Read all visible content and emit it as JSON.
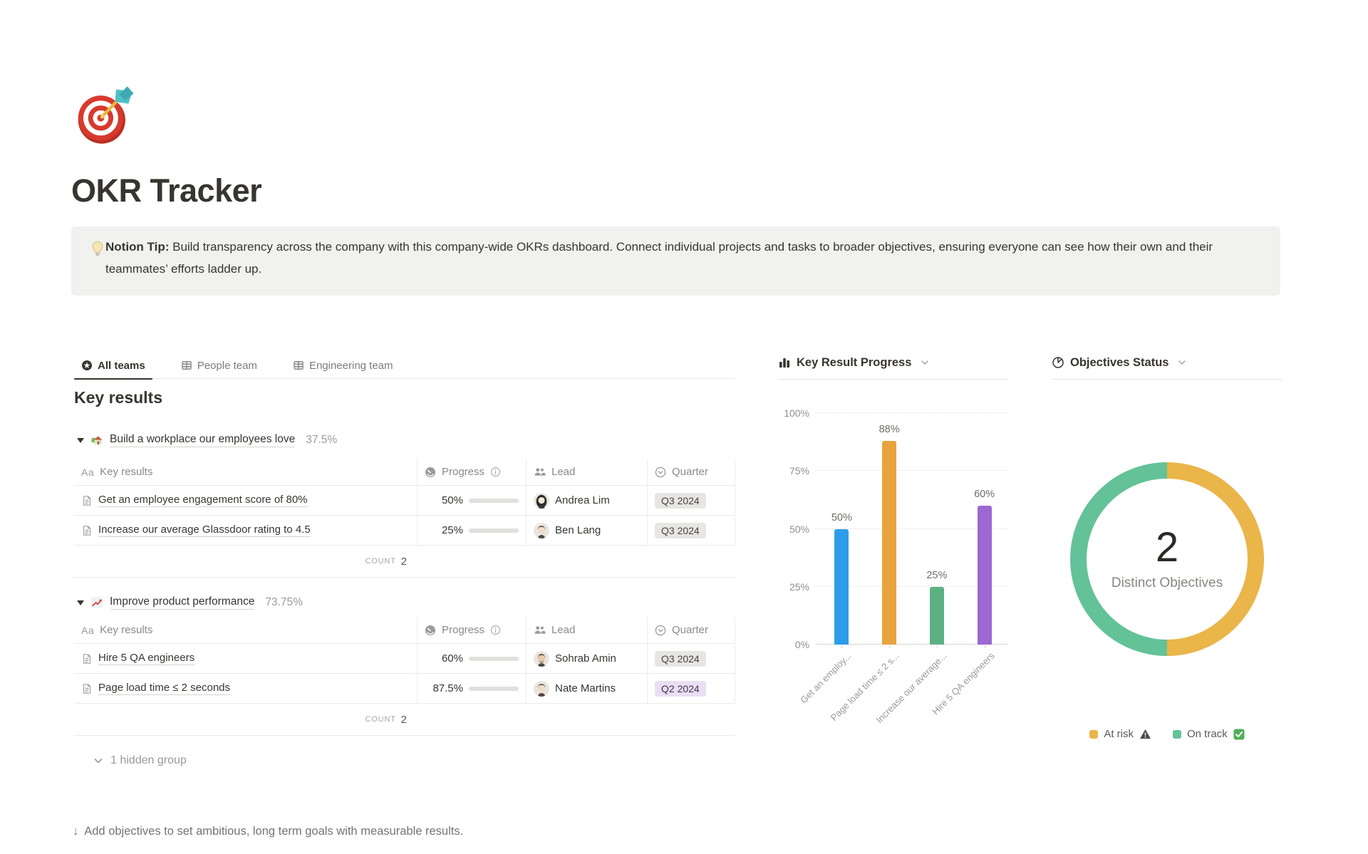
{
  "page": {
    "title": "OKR Tracker",
    "icon": "target-and-dart-emoji"
  },
  "callout": {
    "icon": "light-bulb-emoji",
    "label": "Notion Tip:",
    "text": " Build transparency across the company with this company-wide OKRs dashboard. Connect individual projects and tasks to broader objectives, ensuring everyone can see how their own and their teammates’ efforts ladder up."
  },
  "tabs": [
    {
      "label": "All teams",
      "icon": "star-view-icon",
      "active": true
    },
    {
      "label": "People team",
      "icon": "table-view-icon",
      "active": false
    },
    {
      "label": "Engineering team",
      "icon": "table-view-icon",
      "active": false
    }
  ],
  "key_results": {
    "heading": "Key results",
    "header": {
      "name_icon": "Aa",
      "name": "Key results",
      "progress": "Progress",
      "lead": "Lead",
      "quarter": "Quarter"
    },
    "groups": [
      {
        "emoji": "house-with-garden-emoji",
        "title": "Build a workplace our employees love",
        "percent": "37.5%",
        "rows": [
          {
            "name": "Get an employee engagement score of 80%",
            "progress_label": "50%",
            "progress_value": 50,
            "lead": "Andrea Lim",
            "quarter": "Q3 2024",
            "quarter_color": "gray"
          },
          {
            "name": "Increase our average Glassdoor rating to 4.5",
            "progress_label": "25%",
            "progress_value": 25,
            "lead": "Ben Lang",
            "quarter": "Q3 2024",
            "quarter_color": "gray"
          }
        ],
        "count_label": "COUNT",
        "count_value": "2"
      },
      {
        "emoji": "chart-increasing-emoji",
        "title": "Improve product performance",
        "percent": "73.75%",
        "rows": [
          {
            "name": "Hire 5 QA engineers",
            "progress_label": "60%",
            "progress_value": 60,
            "lead": "Sohrab Amin",
            "quarter": "Q3 2024",
            "quarter_color": "gray"
          },
          {
            "name": "Page load time ≤ 2 seconds",
            "progress_label": "87.5%",
            "progress_value": 87.5,
            "lead": "Nate Martins",
            "quarter": "Q2 2024",
            "quarter_color": "purple"
          }
        ],
        "count_label": "COUNT",
        "count_value": "2"
      }
    ],
    "hidden_group": "1 hidden group"
  },
  "sections": {
    "bar_chart_title": "Key Result Progress",
    "donut_chart_title": "Objectives Status"
  },
  "footer": {
    "icon": "↓",
    "text": "Add objectives to set ambitious, long term goals with measurable results."
  },
  "chart_data": [
    {
      "type": "bar",
      "title": "Key Result Progress",
      "categories": [
        "Get an employ...",
        "Page load time ≤ 2 s...",
        "Increase our average...",
        "Hire 5 QA engineers"
      ],
      "values": [
        50,
        88,
        25,
        60
      ],
      "value_labels": [
        "50%",
        "88%",
        "25%",
        "60%"
      ],
      "colors": [
        "#2D9CEA",
        "#E8A33C",
        "#5CB183",
        "#9B69D1"
      ],
      "y_ticks": [
        {
          "label": "0%",
          "value": 0
        },
        {
          "label": "25%",
          "value": 25
        },
        {
          "label": "50%",
          "value": 50
        },
        {
          "label": "75%",
          "value": 75
        },
        {
          "label": "100%",
          "value": 100
        }
      ],
      "ylim": [
        0,
        100
      ],
      "grid": "dotted-horizontal",
      "xlabel": "",
      "ylabel": ""
    },
    {
      "type": "pie",
      "title": "Objectives Status",
      "donut": true,
      "slices": [
        {
          "label": "At risk",
          "value": 1,
          "color": "#EAB549"
        },
        {
          "label": "On track",
          "value": 1,
          "color": "#63C298"
        }
      ],
      "center_value": "2",
      "center_label": "Distinct Objectives",
      "legend": [
        {
          "label": "At risk",
          "icon": "warning-icon"
        },
        {
          "label": "On track",
          "icon": "check-icon"
        }
      ],
      "legend_position": "bottom"
    }
  ]
}
